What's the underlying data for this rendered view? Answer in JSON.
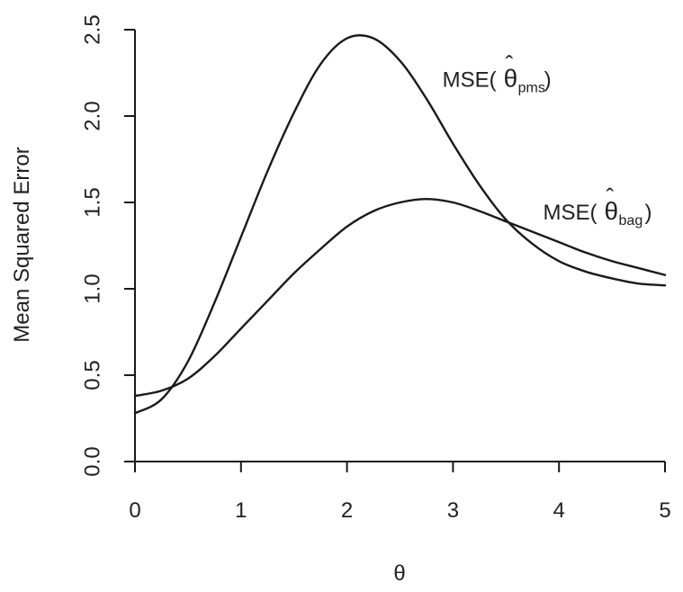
{
  "chart_data": {
    "type": "line",
    "title": "",
    "xlabel": "θ",
    "ylabel": "Mean Squared Error",
    "xlim": [
      0,
      5
    ],
    "ylim": [
      0,
      2.5
    ],
    "grid": false,
    "x_ticks": [
      "0",
      "1",
      "2",
      "3",
      "4",
      "5"
    ],
    "y_ticks": [
      "0.0",
      "0.5",
      "1.0",
      "1.5",
      "2.0",
      "2.5"
    ],
    "x": [
      0,
      0.25,
      0.5,
      0.75,
      1,
      1.25,
      1.5,
      1.75,
      2,
      2.25,
      2.5,
      2.75,
      3,
      3.25,
      3.5,
      3.75,
      4,
      4.25,
      4.5,
      4.75,
      5
    ],
    "series": [
      {
        "name": "MSE(θ̂pms)",
        "label_parts": {
          "prefix": "MSE(",
          "hat": "ˆ",
          "theta": "θ",
          "subscript": "pms",
          "suffix": ")"
        },
        "values": [
          0.28,
          0.36,
          0.58,
          0.92,
          1.3,
          1.68,
          2.02,
          2.3,
          2.45,
          2.45,
          2.32,
          2.1,
          1.84,
          1.6,
          1.4,
          1.26,
          1.16,
          1.1,
          1.06,
          1.03,
          1.02
        ]
      },
      {
        "name": "MSE(θ̂bag)",
        "label_parts": {
          "prefix": "MSE(",
          "hat": "ˆ",
          "theta": "θ",
          "subscript": "bag",
          "suffix": ")"
        },
        "values": [
          0.38,
          0.41,
          0.48,
          0.61,
          0.77,
          0.93,
          1.09,
          1.23,
          1.36,
          1.45,
          1.5,
          1.52,
          1.5,
          1.45,
          1.39,
          1.33,
          1.27,
          1.21,
          1.16,
          1.12,
          1.08
        ]
      }
    ],
    "annotations": [
      {
        "series": 0,
        "anchor_x": 2.9,
        "anchor_y": 2.17
      },
      {
        "series": 1,
        "anchor_x": 3.85,
        "anchor_y": 1.4
      }
    ]
  }
}
